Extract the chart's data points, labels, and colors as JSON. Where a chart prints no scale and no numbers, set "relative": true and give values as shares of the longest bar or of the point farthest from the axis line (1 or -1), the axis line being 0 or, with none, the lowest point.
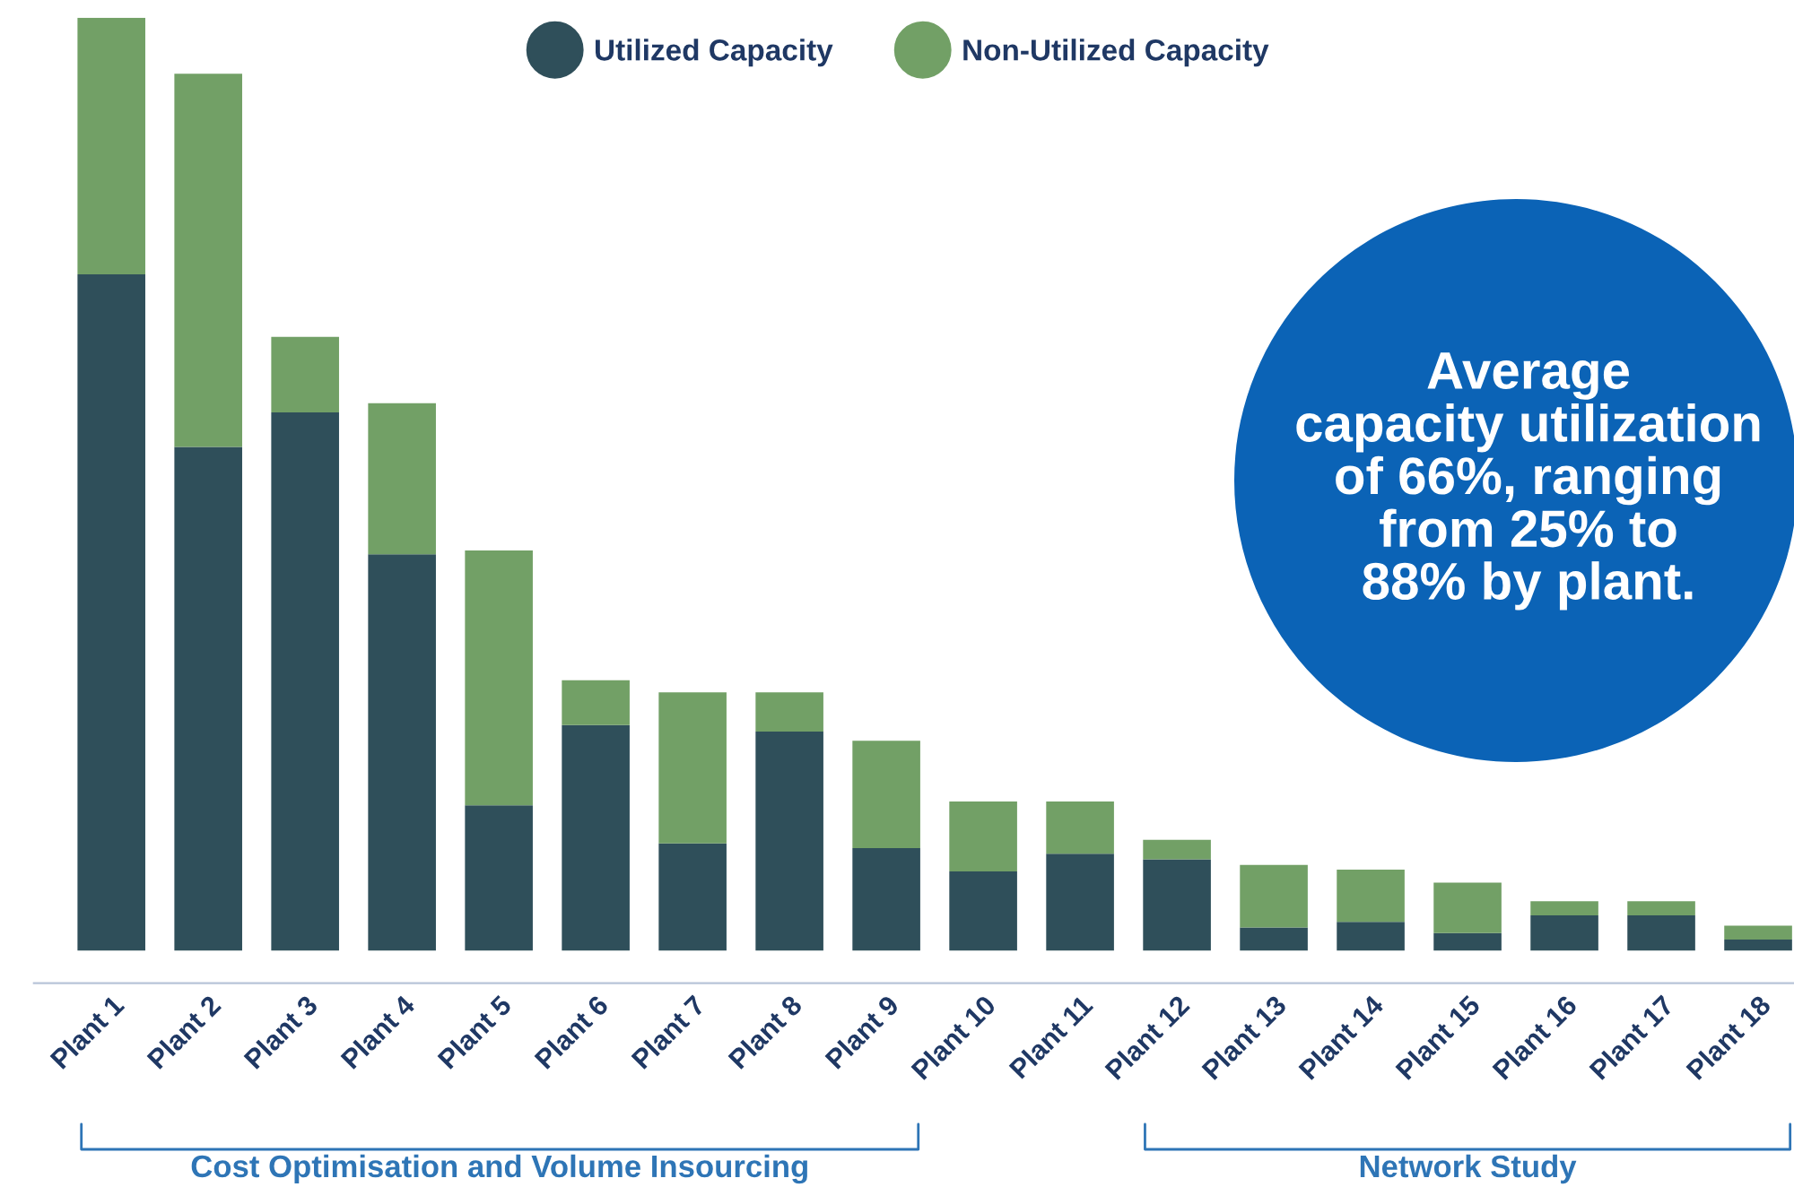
{
  "chart_data": {
    "type": "bar",
    "stacked": true,
    "relative": true,
    "categories": [
      "Plant 1",
      "Plant 2",
      "Plant 3",
      "Plant 4",
      "Plant 5",
      "Plant 6",
      "Plant 7",
      "Plant 8",
      "Plant 9",
      "Plant 10",
      "Plant 11",
      "Plant 12",
      "Plant 13",
      "Plant 14",
      "Plant 15",
      "Plant 16",
      "Plant 17",
      "Plant 18"
    ],
    "series": [
      {
        "name": "Utilized Capacity",
        "color": "#2f4f5a",
        "values": [
          0.725,
          0.54,
          0.577,
          0.425,
          0.156,
          0.242,
          0.115,
          0.235,
          0.11,
          0.085,
          0.104,
          0.098,
          0.025,
          0.031,
          0.019,
          0.038,
          0.038,
          0.012
        ]
      },
      {
        "name": "Non-Utilized Capacity",
        "color": "#72a066",
        "values": [
          0.275,
          0.4,
          0.081,
          0.162,
          0.273,
          0.048,
          0.162,
          0.042,
          0.115,
          0.075,
          0.056,
          0.021,
          0.067,
          0.056,
          0.054,
          0.015,
          0.015,
          0.015
        ]
      }
    ],
    "legend": "top",
    "grid": false,
    "annotations": [
      "Average\ncapacity utilization\nof 66%, ranging\nfrom 25% to\n88% by plant.",
      "Cost Optimisation and Volume Insourcing",
      "Network Study"
    ]
  }
}
